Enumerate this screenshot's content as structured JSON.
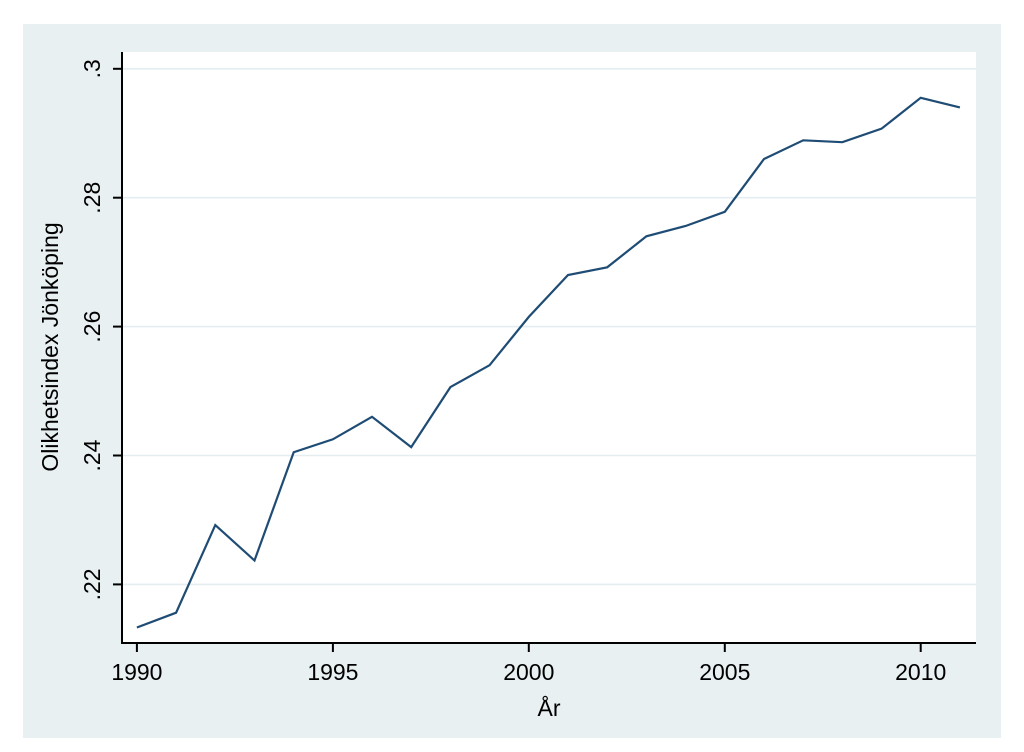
{
  "figure": {
    "colors": {
      "figure_background": "#ffffff",
      "canvas_background": "#e9f0f2",
      "plot_background": "#ffffff",
      "gridline_color": "#e4eef1",
      "axis_color": "#000000",
      "text_color": "#000000",
      "line_color": "#1f4c74"
    }
  },
  "chart_data": {
    "type": "line",
    "title": "",
    "xlabel": "År",
    "ylabel": "Olikhetsindex Jönköping",
    "x": [
      1990,
      1991,
      1992,
      1993,
      1994,
      1995,
      1996,
      1997,
      1998,
      1999,
      2000,
      2001,
      2002,
      2003,
      2004,
      2005,
      2006,
      2007,
      2008,
      2009,
      2010,
      2011
    ],
    "y": [
      0.2133,
      0.2156,
      0.2292,
      0.2237,
      0.2405,
      0.2425,
      0.246,
      0.2413,
      0.2506,
      0.254,
      0.2615,
      0.268,
      0.2692,
      0.274,
      0.2756,
      0.2778,
      0.286,
      0.2889,
      0.2886,
      0.2907,
      0.2955,
      0.294
    ],
    "series_name": "Olikhetsindex Jönköping",
    "xticks": {
      "values": [
        1990,
        1995,
        2000,
        2005,
        2010
      ],
      "labels": [
        "1990",
        "1995",
        "2000",
        "2005",
        "2010"
      ]
    },
    "yticks": {
      "values": [
        0.22,
        0.24,
        0.26,
        0.28,
        0.3
      ],
      "labels": [
        ".22",
        ".24",
        ".26",
        ".28",
        ".3"
      ]
    },
    "xlim": [
      1989.62,
      2011.41
    ],
    "ylim": [
      0.2109,
      0.3026
    ],
    "grid": "horizontal",
    "legend": "none"
  }
}
